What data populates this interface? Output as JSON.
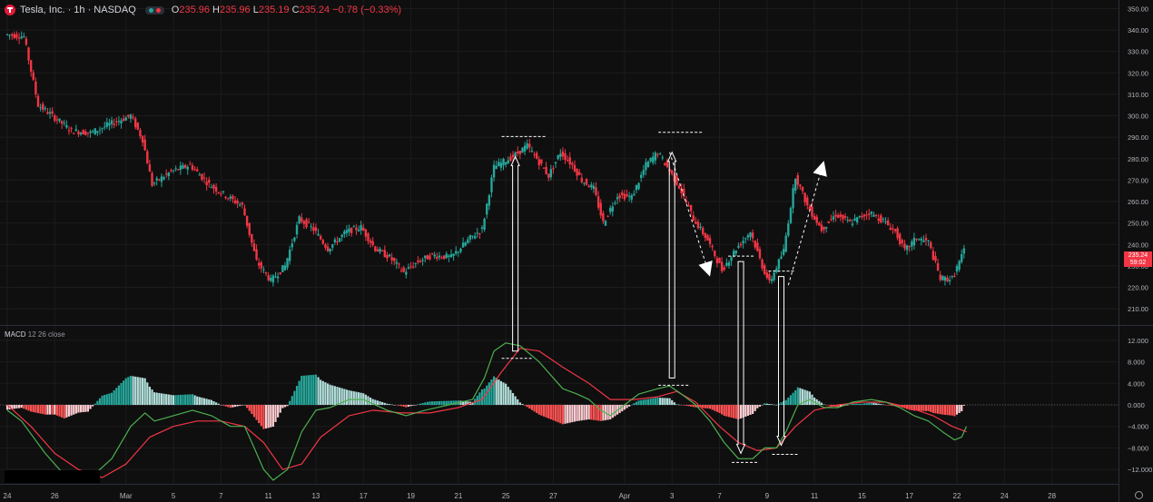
{
  "header": {
    "symbol": "Tesla, Inc. · 1h · NASDAQ",
    "o_label": "O",
    "o_value": "235.96",
    "h_label": "H",
    "h_value": "235.96",
    "l_label": "L",
    "l_value": "235.19",
    "c_label": "C",
    "c_value": "235.24 −0.78 (−0.33%)"
  },
  "price_tag": {
    "price": "235.24",
    "countdown": "59:02"
  },
  "macd_indicator": {
    "name": "MACD",
    "params": "12 26 close"
  },
  "colors": {
    "up": "#26a69a",
    "down": "#f23645",
    "hist_up_strong": "#26a69a",
    "hist_up_weak": "#b2dfdb",
    "hist_down_strong": "#ff5252",
    "hist_down_weak": "#ffcdd2",
    "macd_line": "#4caf50",
    "signal_line": "#f23645",
    "grid": "#1c1c1c",
    "axis_text": "#b2b5be",
    "annot": "#ffffff"
  },
  "chart_data": [
    {
      "type": "candlestick",
      "x_unit": "session days (Feb 24 → Apr 22)",
      "x_ticks": [
        {
          "label": "24",
          "t": 0
        },
        {
          "label": "26",
          "t": 2
        },
        {
          "label": "Mar",
          "t": 5
        },
        {
          "label": "5",
          "t": 7
        },
        {
          "label": "7",
          "t": 9
        },
        {
          "label": "11",
          "t": 11
        },
        {
          "label": "13",
          "t": 13
        },
        {
          "label": "17",
          "t": 15
        },
        {
          "label": "19",
          "t": 17
        },
        {
          "label": "21",
          "t": 19
        },
        {
          "label": "25",
          "t": 21
        },
        {
          "label": "27",
          "t": 23
        },
        {
          "label": "Apr",
          "t": 26
        },
        {
          "label": "3",
          "t": 28
        },
        {
          "label": "7",
          "t": 30
        },
        {
          "label": "9",
          "t": 32
        },
        {
          "label": "11",
          "t": 34
        },
        {
          "label": "15",
          "t": 36
        },
        {
          "label": "17",
          "t": 38
        },
        {
          "label": "22",
          "t": 40
        },
        {
          "label": "24",
          "t": 42
        },
        {
          "label": "28",
          "t": 44
        }
      ],
      "y_range": [
        202,
        354
      ],
      "y_ticks": [
        210,
        220,
        230,
        240,
        250,
        260,
        270,
        280,
        290,
        300,
        310,
        320,
        330,
        340,
        350
      ],
      "path_points": [
        [
          0,
          338
        ],
        [
          0.8,
          337
        ],
        [
          1.4,
          305
        ],
        [
          2.0,
          300
        ],
        [
          2.8,
          293
        ],
        [
          3.6,
          292
        ],
        [
          4.4,
          296
        ],
        [
          5.3,
          300
        ],
        [
          5.8,
          289
        ],
        [
          6.2,
          268
        ],
        [
          7.0,
          274
        ],
        [
          7.8,
          277
        ],
        [
          8.6,
          268
        ],
        [
          9.4,
          262
        ],
        [
          10.0,
          258
        ],
        [
          10.6,
          232
        ],
        [
          11.2,
          223
        ],
        [
          11.8,
          230
        ],
        [
          12.4,
          252
        ],
        [
          13.0,
          247
        ],
        [
          13.6,
          238
        ],
        [
          14.4,
          246
        ],
        [
          15.0,
          248
        ],
        [
          15.6,
          238
        ],
        [
          16.2,
          234
        ],
        [
          16.8,
          227
        ],
        [
          17.4,
          232
        ],
        [
          18.0,
          235
        ],
        [
          18.8,
          234
        ],
        [
          19.6,
          243
        ],
        [
          20.1,
          247
        ],
        [
          20.6,
          276
        ],
        [
          21.4,
          281
        ],
        [
          22.0,
          286
        ],
        [
          22.4,
          280
        ],
        [
          22.9,
          272
        ],
        [
          23.4,
          283
        ],
        [
          23.9,
          277
        ],
        [
          24.3,
          270
        ],
        [
          24.8,
          266
        ],
        [
          25.2,
          250
        ],
        [
          25.8,
          263
        ],
        [
          26.4,
          262
        ],
        [
          27.0,
          277
        ],
        [
          27.5,
          283
        ],
        [
          27.9,
          276
        ],
        [
          28.4,
          267
        ],
        [
          29.0,
          252
        ],
        [
          29.6,
          242
        ],
        [
          30.2,
          228
        ],
        [
          30.8,
          238
        ],
        [
          31.4,
          246
        ],
        [
          31.9,
          230
        ],
        [
          32.2,
          222
        ],
        [
          32.8,
          237
        ],
        [
          33.3,
          272
        ],
        [
          33.8,
          258
        ],
        [
          34.4,
          247
        ],
        [
          35.0,
          254
        ],
        [
          35.6,
          250
        ],
        [
          36.4,
          255
        ],
        [
          37.0,
          251
        ],
        [
          37.5,
          246
        ],
        [
          37.9,
          237
        ],
        [
          38.4,
          243
        ],
        [
          38.9,
          241
        ],
        [
          39.4,
          224
        ],
        [
          39.9,
          224
        ],
        [
          40.4,
          237
        ]
      ],
      "annotations": [
        {
          "type": "arrow",
          "x": 21.4,
          "from": "macd",
          "y_from_macd": 10.0,
          "to_price": 281
        },
        {
          "type": "arrow",
          "x": 28.0,
          "from": "macd",
          "y_from_macd": 5.0,
          "to_price": 283
        },
        {
          "type": "arrow",
          "x": 30.9,
          "from_price": 232,
          "to_macd": -9.0
        },
        {
          "type": "arrow",
          "x": 32.6,
          "from_price": 225,
          "to_macd": -7.5
        },
        {
          "type": "trend",
          "points": [
            [
              27.9,
              283
            ],
            [
              29.6,
              225
            ]
          ]
        },
        {
          "type": "trend",
          "points": [
            [
              32.9,
              221
            ],
            [
              34.4,
              279
            ]
          ]
        }
      ]
    },
    {
      "type": "macd",
      "y_range": [
        -14.5,
        14.5
      ],
      "y_ticks": [
        -12,
        -8,
        -4,
        0,
        4,
        8,
        12
      ],
      "macd_points": [
        [
          0,
          -1
        ],
        [
          0.6,
          -3
        ],
        [
          1.6,
          -9
        ],
        [
          2.4,
          -13
        ],
        [
          3.4,
          -14
        ],
        [
          4.4,
          -10
        ],
        [
          5.2,
          -4
        ],
        [
          5.8,
          -1.5
        ],
        [
          6.2,
          -3
        ],
        [
          7.0,
          -2
        ],
        [
          7.8,
          -1
        ],
        [
          8.6,
          -2
        ],
        [
          9.4,
          -4
        ],
        [
          10.0,
          -4
        ],
        [
          10.4,
          -8
        ],
        [
          10.8,
          -12
        ],
        [
          11.2,
          -14
        ],
        [
          11.8,
          -12
        ],
        [
          12.4,
          -5
        ],
        [
          13.0,
          -1
        ],
        [
          13.6,
          -0.5
        ],
        [
          14.4,
          1
        ],
        [
          15.0,
          1
        ],
        [
          16.0,
          -1
        ],
        [
          16.8,
          -2
        ],
        [
          17.6,
          -1
        ],
        [
          18.6,
          0
        ],
        [
          19.6,
          1
        ],
        [
          20.1,
          5
        ],
        [
          20.5,
          10
        ],
        [
          21.0,
          11.5
        ],
        [
          21.6,
          11
        ],
        [
          22.4,
          8
        ],
        [
          23.4,
          3
        ],
        [
          24.0,
          2
        ],
        [
          24.5,
          1
        ],
        [
          25.0,
          -1
        ],
        [
          25.4,
          -2
        ],
        [
          26.0,
          0
        ],
        [
          26.6,
          2
        ],
        [
          27.4,
          3
        ],
        [
          27.9,
          3.5
        ],
        [
          28.4,
          2
        ],
        [
          29.0,
          0
        ],
        [
          29.6,
          -3
        ],
        [
          30.2,
          -7
        ],
        [
          30.8,
          -10
        ],
        [
          31.4,
          -10
        ],
        [
          31.9,
          -8
        ],
        [
          32.4,
          -8
        ],
        [
          32.8,
          -5
        ],
        [
          33.3,
          0
        ],
        [
          33.8,
          1
        ],
        [
          34.4,
          -0.5
        ],
        [
          35.0,
          -0.5
        ],
        [
          35.6,
          0.5
        ],
        [
          36.4,
          1
        ],
        [
          37.0,
          0.5
        ],
        [
          37.6,
          -0.5
        ],
        [
          38.2,
          -2
        ],
        [
          38.8,
          -3
        ],
        [
          39.4,
          -5
        ],
        [
          39.9,
          -6.5
        ],
        [
          40.2,
          -6
        ],
        [
          40.4,
          -4
        ]
      ],
      "signal_points": [
        [
          0,
          0
        ],
        [
          1,
          -4
        ],
        [
          2,
          -9
        ],
        [
          3,
          -12
        ],
        [
          4,
          -13.5
        ],
        [
          5,
          -11
        ],
        [
          6,
          -6
        ],
        [
          7,
          -4
        ],
        [
          8,
          -3
        ],
        [
          9,
          -3
        ],
        [
          10,
          -4
        ],
        [
          10.8,
          -7
        ],
        [
          11.6,
          -12
        ],
        [
          12.4,
          -11
        ],
        [
          13.2,
          -6
        ],
        [
          14.4,
          -2
        ],
        [
          15.4,
          -1
        ],
        [
          16.6,
          -1.5
        ],
        [
          17.8,
          -1.5
        ],
        [
          19,
          -0.5
        ],
        [
          20,
          1
        ],
        [
          20.8,
          6
        ],
        [
          21.6,
          10.5
        ],
        [
          22.4,
          10
        ],
        [
          23.4,
          7
        ],
        [
          24.5,
          4
        ],
        [
          25.4,
          1
        ],
        [
          26.4,
          1
        ],
        [
          27.4,
          1.5
        ],
        [
          28.2,
          2.5
        ],
        [
          29.0,
          0.5
        ],
        [
          30.0,
          -4
        ],
        [
          30.8,
          -7
        ],
        [
          31.6,
          -8.5
        ],
        [
          32.4,
          -8
        ],
        [
          33.2,
          -4
        ],
        [
          34,
          -1
        ],
        [
          35,
          0
        ],
        [
          36,
          0.5
        ],
        [
          37,
          0.5
        ],
        [
          38,
          -0.5
        ],
        [
          39,
          -2
        ],
        [
          39.8,
          -4
        ],
        [
          40.4,
          -5
        ]
      ]
    }
  ]
}
